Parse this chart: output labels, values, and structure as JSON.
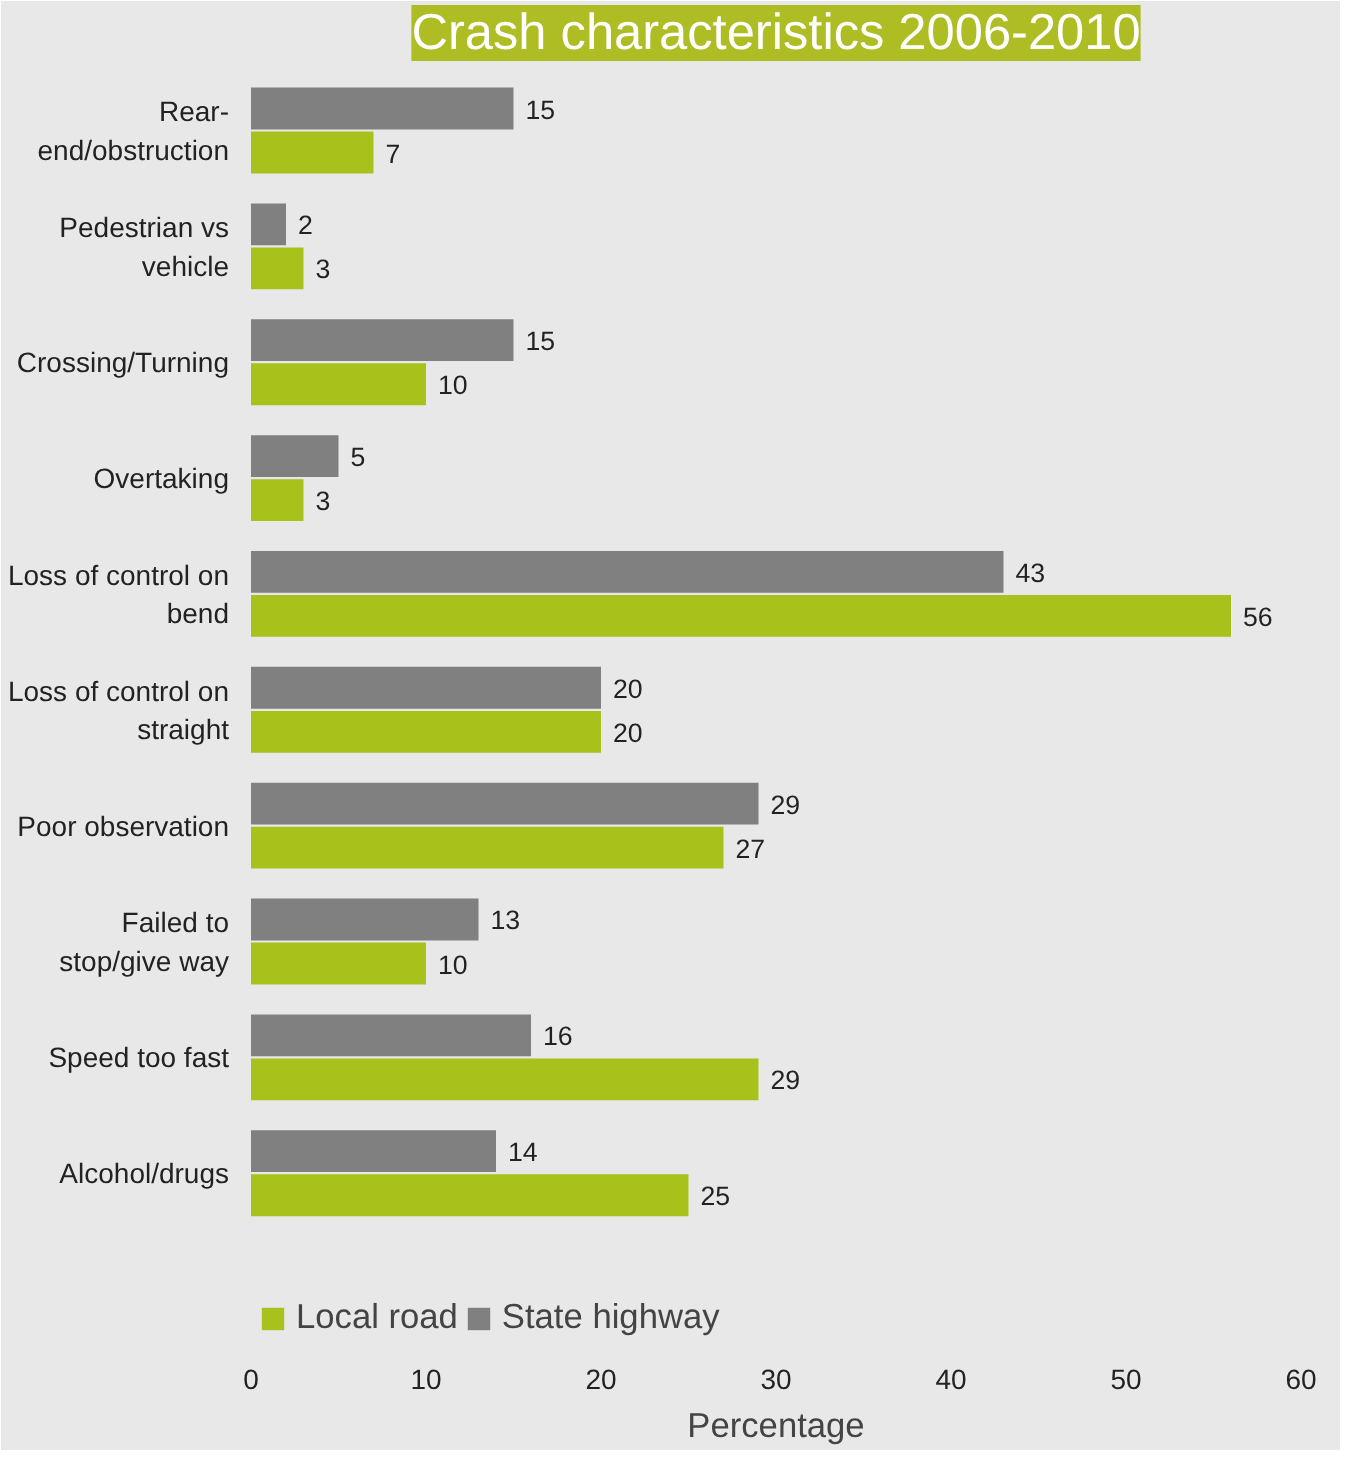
{
  "chart_data": {
    "type": "bar",
    "orientation": "horizontal",
    "title": "Crash characteristics 2006-2010",
    "xlabel": "Percentage",
    "categories": [
      "Rear-end/obstruction",
      "Pedestrian vs vehicle",
      "Crossing/Turning",
      "Overtaking",
      "Loss of control on bend",
      "Loss of control on straight",
      "Poor observation",
      "Failed to stop/give way",
      "Speed too fast",
      "Alcohol/drugs"
    ],
    "series": [
      {
        "name": "Local road",
        "color": "#a9c11b",
        "values": [
          7,
          3,
          10,
          3,
          56,
          20,
          27,
          10,
          29,
          25
        ]
      },
      {
        "name": "State highway",
        "color": "#808080",
        "values": [
          15,
          2,
          15,
          5,
          43,
          20,
          29,
          13,
          16,
          14
        ]
      }
    ],
    "xlim": [
      0,
      60
    ],
    "xticks": [
      0,
      10,
      20,
      30,
      40,
      50,
      60
    ],
    "data_labels": true,
    "grid": false,
    "legend": "bottom left"
  }
}
